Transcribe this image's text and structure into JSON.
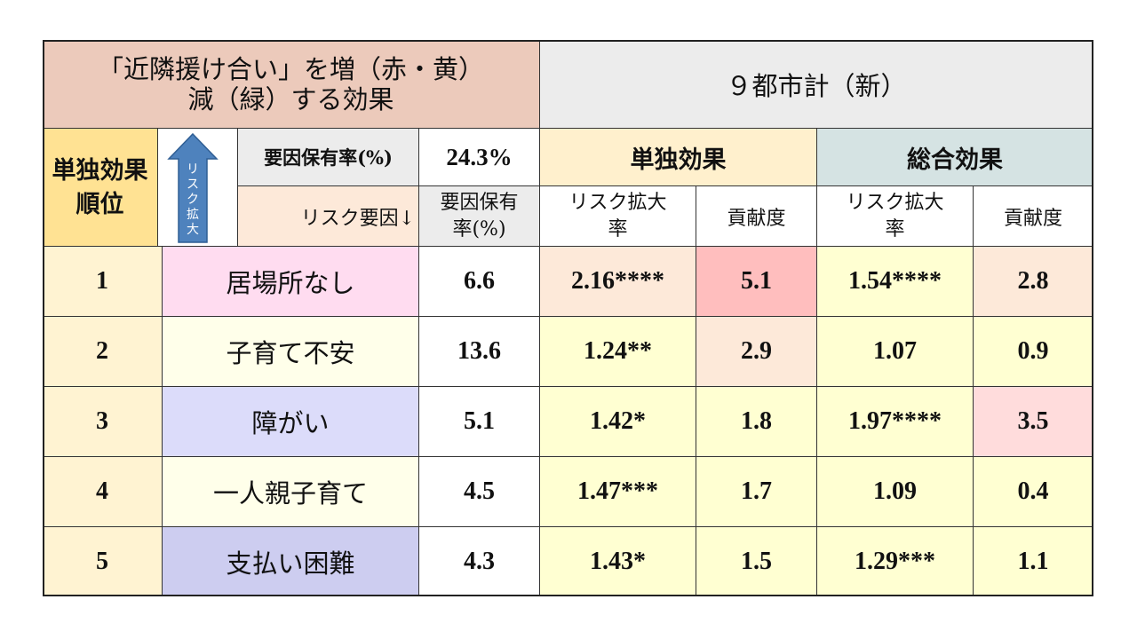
{
  "title": {
    "line1": "「近隣援け合い」を増（赤・黄）",
    "line2": "減（緑）する効果"
  },
  "region": "９都市計（新）",
  "rank_header": {
    "line1": "単独効果",
    "line2": "順位"
  },
  "arrow_text": "リスク拡大",
  "factor_rate_label": "要因保有率(%)",
  "overall_rate": "24.3%",
  "risk_factor_label": "リスク要因↓",
  "rate_col_header": {
    "line1": "要因保有",
    "line2": "率(%)"
  },
  "single_effect_header": "単独効果",
  "total_effect_header": "総合効果",
  "risk_ratio_header": {
    "line1": "リスク拡大",
    "line2": "率"
  },
  "contribution_header": "貢献度",
  "colors": {
    "title_bg": "#eccabb",
    "region_bg": "#ececec",
    "rank_bg": "#ffe293",
    "single_header_bg": "#fff0cd",
    "total_header_bg": "#d5e3e3",
    "arrow_fill": "#4e82bd",
    "red_cell": "#ffbebe",
    "pink_cell": "#ffdcdc",
    "peach_cell": "#fde9d9",
    "yellow_cell": "#ffffd2"
  },
  "rows": [
    {
      "rank": "1",
      "factor": "居場所なし",
      "factor_bg": "#ffdcf0",
      "rate": "6.6",
      "single_ratio": "2.16****",
      "single_ratio_bg": "#fde9d9",
      "single_contrib": "5.1",
      "single_contrib_bg": "#ffbebe",
      "total_ratio": "1.54****",
      "total_ratio_bg": "#ffffd2",
      "total_contrib": "2.8",
      "total_contrib_bg": "#fde9d9"
    },
    {
      "rank": "2",
      "factor": "子育て不安",
      "factor_bg": "#ffffea",
      "rate": "13.6",
      "single_ratio": "1.24**",
      "single_ratio_bg": "#ffffd2",
      "single_contrib": "2.9",
      "single_contrib_bg": "#fde9d9",
      "total_ratio": "1.07",
      "total_ratio_bg": "#ffffd2",
      "total_contrib": "0.9",
      "total_contrib_bg": "#ffffd2"
    },
    {
      "rank": "3",
      "factor": "障がい",
      "factor_bg": "#dcdcfa",
      "rate": "5.1",
      "single_ratio": "1.42*",
      "single_ratio_bg": "#ffffd2",
      "single_contrib": "1.8",
      "single_contrib_bg": "#ffffd2",
      "total_ratio": "1.97****",
      "total_ratio_bg": "#ffffd2",
      "total_contrib": "3.5",
      "total_contrib_bg": "#ffdcdc"
    },
    {
      "rank": "4",
      "factor": "一人親子育て",
      "factor_bg": "#ffffea",
      "rate": "4.5",
      "single_ratio": "1.47***",
      "single_ratio_bg": "#ffffd2",
      "single_contrib": "1.7",
      "single_contrib_bg": "#ffffd2",
      "total_ratio": "1.09",
      "total_ratio_bg": "#ffffd2",
      "total_contrib": "0.4",
      "total_contrib_bg": "#ffffd2"
    },
    {
      "rank": "5",
      "factor": "支払い困難",
      "factor_bg": "#cdcdf0",
      "rate": "4.3",
      "single_ratio": "1.43*",
      "single_ratio_bg": "#ffffd2",
      "single_contrib": "1.5",
      "single_contrib_bg": "#ffffd2",
      "total_ratio": "1.29***",
      "total_ratio_bg": "#ffffd2",
      "total_contrib": "1.1",
      "total_contrib_bg": "#ffffd2"
    }
  ]
}
